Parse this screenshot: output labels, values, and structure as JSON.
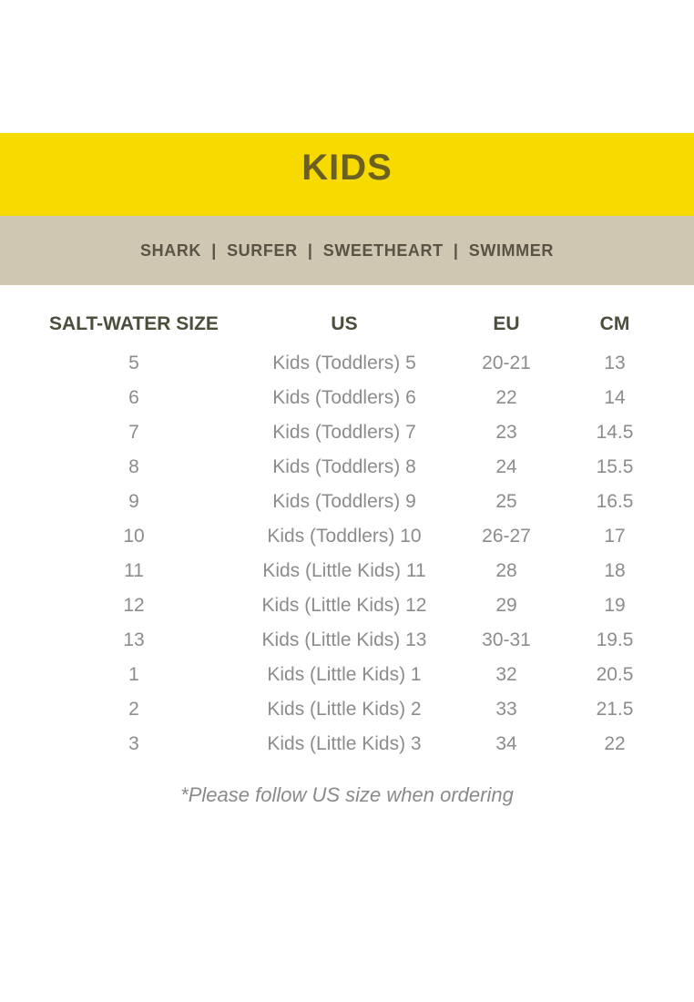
{
  "page": {
    "background": "#FFFFFF"
  },
  "banner": {
    "title": "KIDS",
    "background": "#F7DB00",
    "text_color": "#6B6020"
  },
  "category_bar": {
    "items": [
      "SHARK",
      "SURFER",
      "SWEETHEART",
      "SWIMMER"
    ],
    "separator": "|",
    "background": "#CFC7B1",
    "text_color": "#5A5245"
  },
  "chart_data": {
    "type": "table",
    "title": "KIDS",
    "headers": [
      "SALT-WATER SIZE",
      "US",
      "EU",
      "CM"
    ],
    "rows": [
      [
        "5",
        "Kids (Toddlers) 5",
        "20-21",
        "13"
      ],
      [
        "6",
        "Kids (Toddlers) 6",
        "22",
        "14"
      ],
      [
        "7",
        "Kids (Toddlers) 7",
        "23",
        "14.5"
      ],
      [
        "8",
        "Kids (Toddlers) 8",
        "24",
        "15.5"
      ],
      [
        "9",
        "Kids (Toddlers) 9",
        "25",
        "16.5"
      ],
      [
        "10",
        "Kids (Toddlers) 10",
        "26-27",
        "17"
      ],
      [
        "11",
        "Kids (Little Kids) 11",
        "28",
        "18"
      ],
      [
        "12",
        "Kids (Little Kids) 12",
        "29",
        "19"
      ],
      [
        "13",
        "Kids (Little Kids) 13",
        "30-31",
        "19.5"
      ],
      [
        "1",
        "Kids (Little Kids) 1",
        "32",
        "20.5"
      ],
      [
        "2",
        "Kids (Little Kids) 2",
        "33",
        "21.5"
      ],
      [
        "3",
        "Kids (Little Kids) 3",
        "34",
        "22"
      ]
    ],
    "header_text_color": "#4D4D3B",
    "row_text_color": "#8C8C8C"
  },
  "footnote": "*Please follow US size when ordering"
}
